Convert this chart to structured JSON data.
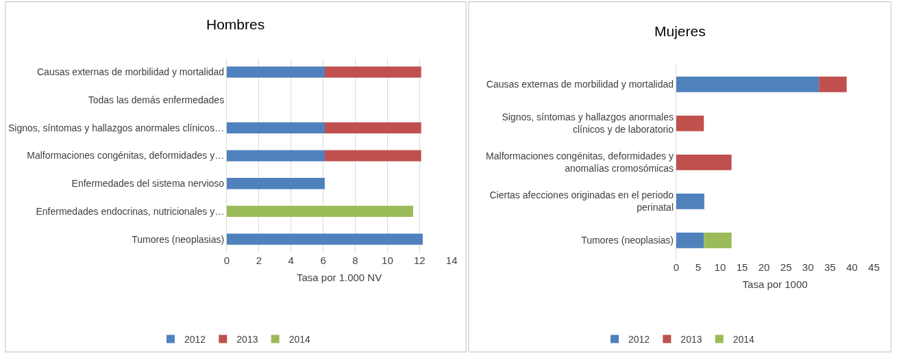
{
  "chart_data": [
    {
      "type": "bar",
      "orientation": "horizontal",
      "stacked": true,
      "title": "Hombres",
      "xlabel": "Tasa por 1.000 NV",
      "categories": [
        "Causas externas de morbilidad y mortalidad",
        "Todas las demás enfermedades",
        "Signos, síntomas y hallazgos anormales clínicos…",
        "Malformaciones congénitas, deformidades y…",
        "Enfermedades del sistema nervioso",
        "Enfermedades endocrinas, nutricionales y…",
        "Tumores (neoplasias)"
      ],
      "series": [
        {
          "name": "2012",
          "color": "#4f81bd",
          "values": [
            6.1,
            null,
            6.1,
            6.1,
            6.1,
            null,
            12.2
          ]
        },
        {
          "name": "2013",
          "color": "#c0504d",
          "values": [
            6.0,
            null,
            6.0,
            6.0,
            null,
            null,
            null
          ]
        },
        {
          "name": "2014",
          "color": "#9bbb59",
          "values": [
            null,
            null,
            null,
            null,
            null,
            11.6,
            null
          ]
        }
      ],
      "xlim": [
        0,
        14
      ],
      "xticks": [
        0,
        2,
        4,
        6,
        8,
        10,
        12,
        14
      ],
      "grid": "x",
      "legend": "bottom"
    },
    {
      "type": "bar",
      "orientation": "horizontal",
      "stacked": true,
      "title": "Mujeres",
      "xlabel": "Tasa por 1000",
      "categories": [
        "Causas externas de morbilidad y mortalidad",
        "Signos, síntomas y hallazgos anormales clínicos y de laboratorio",
        "Malformaciones congénitas, deformidades y anomalías cromosómicas",
        "Ciertas afecciones originadas en el periodo perinatal",
        "Tumores (neoplasias)"
      ],
      "series": [
        {
          "name": "2012",
          "color": "#4f81bd",
          "values": [
            32.5,
            null,
            null,
            6.4,
            6.3
          ]
        },
        {
          "name": "2013",
          "color": "#c0504d",
          "values": [
            6.3,
            6.3,
            12.6,
            null,
            null
          ]
        },
        {
          "name": "2014",
          "color": "#9bbb59",
          "values": [
            null,
            null,
            null,
            null,
            6.3
          ]
        }
      ],
      "xlim": [
        0,
        45
      ],
      "xticks": [
        0,
        5,
        10,
        15,
        20,
        25,
        30,
        35,
        40,
        45
      ],
      "legend": "bottom"
    }
  ]
}
